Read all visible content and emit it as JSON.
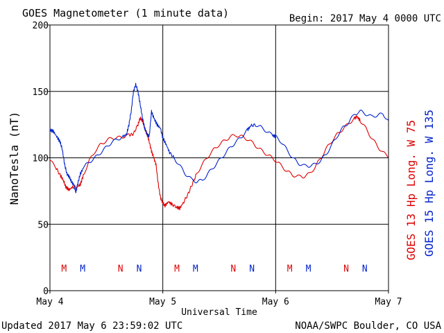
{
  "header": {
    "title": "GOES Magnetometer (1 minute data)",
    "begin": "Begin:  2017 May 4 0000 UTC"
  },
  "footer": {
    "updated": "Updated 2017 May  6 23:59:02 UTC",
    "credit": "NOAA/SWPC Boulder, CO USA"
  },
  "colors": {
    "goes13": "#dd0000",
    "goes15": "#0022cc",
    "axis": "#000000",
    "background": "#ffffff"
  },
  "chart_data": {
    "type": "line",
    "title": "GOES Magnetometer (1 minute data)",
    "xlabel": "Universal Time",
    "ylabel": "NanoTesla (nT)",
    "x_unit": "days since 2017 May 4 0000 UTC",
    "xlim": [
      0,
      3
    ],
    "ylim": [
      0,
      200
    ],
    "y_ticks": [
      0,
      50,
      100,
      150,
      200
    ],
    "x_ticks": [
      {
        "x": 0,
        "label": "May 4"
      },
      {
        "x": 1,
        "label": "May 5"
      },
      {
        "x": 2,
        "label": "May 6"
      },
      {
        "x": 3,
        "label": "May 7"
      }
    ],
    "grid": true,
    "legend_position": "right-vertical",
    "series": [
      {
        "name": "GOES 13 Hp  Long. W 75",
        "color_key": "goes13",
        "points": [
          [
            0.0,
            98
          ],
          [
            0.05,
            93
          ],
          [
            0.09,
            87
          ],
          [
            0.12,
            83
          ],
          [
            0.14,
            78
          ],
          [
            0.17,
            76
          ],
          [
            0.2,
            78
          ],
          [
            0.24,
            78
          ],
          [
            0.27,
            80
          ],
          [
            0.3,
            88
          ],
          [
            0.35,
            98
          ],
          [
            0.4,
            105
          ],
          [
            0.45,
            110
          ],
          [
            0.5,
            113
          ],
          [
            0.55,
            115
          ],
          [
            0.6,
            115
          ],
          [
            0.65,
            116
          ],
          [
            0.7,
            117
          ],
          [
            0.74,
            118
          ],
          [
            0.78,
            125
          ],
          [
            0.8,
            130
          ],
          [
            0.82,
            128
          ],
          [
            0.84,
            122
          ],
          [
            0.86,
            118
          ],
          [
            0.88,
            112
          ],
          [
            0.9,
            105
          ],
          [
            0.92,
            100
          ],
          [
            0.94,
            95
          ],
          [
            0.96,
            80
          ],
          [
            0.98,
            70
          ],
          [
            1.0,
            66
          ],
          [
            1.02,
            64
          ],
          [
            1.05,
            67
          ],
          [
            1.08,
            65
          ],
          [
            1.12,
            63
          ],
          [
            1.15,
            62
          ],
          [
            1.18,
            66
          ],
          [
            1.22,
            72
          ],
          [
            1.26,
            80
          ],
          [
            1.3,
            88
          ],
          [
            1.35,
            95
          ],
          [
            1.4,
            101
          ],
          [
            1.45,
            106
          ],
          [
            1.5,
            110
          ],
          [
            1.55,
            113
          ],
          [
            1.6,
            116
          ],
          [
            1.65,
            117
          ],
          [
            1.7,
            116
          ],
          [
            1.75,
            114
          ],
          [
            1.8,
            111
          ],
          [
            1.85,
            107
          ],
          [
            1.9,
            104
          ],
          [
            1.95,
            101
          ],
          [
            2.0,
            98
          ],
          [
            2.05,
            94
          ],
          [
            2.1,
            90
          ],
          [
            2.15,
            87
          ],
          [
            2.2,
            86
          ],
          [
            2.25,
            86
          ],
          [
            2.3,
            88
          ],
          [
            2.35,
            93
          ],
          [
            2.4,
            100
          ],
          [
            2.45,
            107
          ],
          [
            2.5,
            113
          ],
          [
            2.55,
            118
          ],
          [
            2.6,
            122
          ],
          [
            2.65,
            126
          ],
          [
            2.7,
            130
          ],
          [
            2.72,
            131
          ],
          [
            2.75,
            128
          ],
          [
            2.8,
            122
          ],
          [
            2.85,
            115
          ],
          [
            2.9,
            109
          ],
          [
            2.95,
            104
          ],
          [
            3.0,
            101
          ]
        ]
      },
      {
        "name": "GOES 15 Hp  Long. W 135",
        "color_key": "goes15",
        "points": [
          [
            0.0,
            121
          ],
          [
            0.03,
            120
          ],
          [
            0.06,
            116
          ],
          [
            0.09,
            112
          ],
          [
            0.11,
            106
          ],
          [
            0.13,
            95
          ],
          [
            0.15,
            88
          ],
          [
            0.17,
            86
          ],
          [
            0.19,
            82
          ],
          [
            0.21,
            80
          ],
          [
            0.23,
            74
          ],
          [
            0.25,
            82
          ],
          [
            0.27,
            88
          ],
          [
            0.3,
            93
          ],
          [
            0.35,
            97
          ],
          [
            0.4,
            100
          ],
          [
            0.45,
            104
          ],
          [
            0.5,
            108
          ],
          [
            0.55,
            112
          ],
          [
            0.6,
            114
          ],
          [
            0.65,
            116
          ],
          [
            0.68,
            118
          ],
          [
            0.7,
            125
          ],
          [
            0.72,
            135
          ],
          [
            0.74,
            150
          ],
          [
            0.76,
            155
          ],
          [
            0.78,
            150
          ],
          [
            0.8,
            140
          ],
          [
            0.82,
            130
          ],
          [
            0.84,
            122
          ],
          [
            0.86,
            118
          ],
          [
            0.88,
            116
          ],
          [
            0.9,
            135
          ],
          [
            0.92,
            130
          ],
          [
            0.95,
            125
          ],
          [
            0.98,
            122
          ],
          [
            1.0,
            115
          ],
          [
            1.03,
            110
          ],
          [
            1.06,
            104
          ],
          [
            1.1,
            100
          ],
          [
            1.15,
            94
          ],
          [
            1.2,
            88
          ],
          [
            1.25,
            84
          ],
          [
            1.3,
            82
          ],
          [
            1.35,
            83
          ],
          [
            1.4,
            88
          ],
          [
            1.45,
            93
          ],
          [
            1.5,
            98
          ],
          [
            1.55,
            103
          ],
          [
            1.6,
            108
          ],
          [
            1.65,
            112
          ],
          [
            1.7,
            116
          ],
          [
            1.75,
            121
          ],
          [
            1.78,
            124
          ],
          [
            1.82,
            125
          ],
          [
            1.87,
            123
          ],
          [
            1.92,
            120
          ],
          [
            1.97,
            117
          ],
          [
            2.0,
            116
          ],
          [
            2.05,
            112
          ],
          [
            2.1,
            106
          ],
          [
            2.15,
            100
          ],
          [
            2.2,
            96
          ],
          [
            2.25,
            94
          ],
          [
            2.3,
            94
          ],
          [
            2.35,
            95
          ],
          [
            2.4,
            98
          ],
          [
            2.45,
            103
          ],
          [
            2.5,
            110
          ],
          [
            2.55,
            117
          ],
          [
            2.6,
            123
          ],
          [
            2.65,
            127
          ],
          [
            2.7,
            133
          ],
          [
            2.75,
            135
          ],
          [
            2.8,
            133
          ],
          [
            2.85,
            131
          ],
          [
            2.9,
            132
          ],
          [
            2.95,
            133
          ],
          [
            3.0,
            128
          ]
        ]
      }
    ],
    "markers": [
      {
        "label": "M",
        "x": 0.125,
        "y": 17,
        "color_key": "goes13"
      },
      {
        "label": "M",
        "x": 0.29,
        "y": 17,
        "color_key": "goes15"
      },
      {
        "label": "N",
        "x": 0.625,
        "y": 17,
        "color_key": "goes13"
      },
      {
        "label": "N",
        "x": 0.79,
        "y": 17,
        "color_key": "goes15"
      },
      {
        "label": "M",
        "x": 1.125,
        "y": 17,
        "color_key": "goes13"
      },
      {
        "label": "M",
        "x": 1.29,
        "y": 17,
        "color_key": "goes15"
      },
      {
        "label": "N",
        "x": 1.625,
        "y": 17,
        "color_key": "goes13"
      },
      {
        "label": "N",
        "x": 1.79,
        "y": 17,
        "color_key": "goes15"
      },
      {
        "label": "M",
        "x": 2.125,
        "y": 17,
        "color_key": "goes13"
      },
      {
        "label": "M",
        "x": 2.29,
        "y": 17,
        "color_key": "goes15"
      },
      {
        "label": "N",
        "x": 2.625,
        "y": 17,
        "color_key": "goes13"
      },
      {
        "label": "N",
        "x": 2.79,
        "y": 17,
        "color_key": "goes15"
      }
    ]
  }
}
